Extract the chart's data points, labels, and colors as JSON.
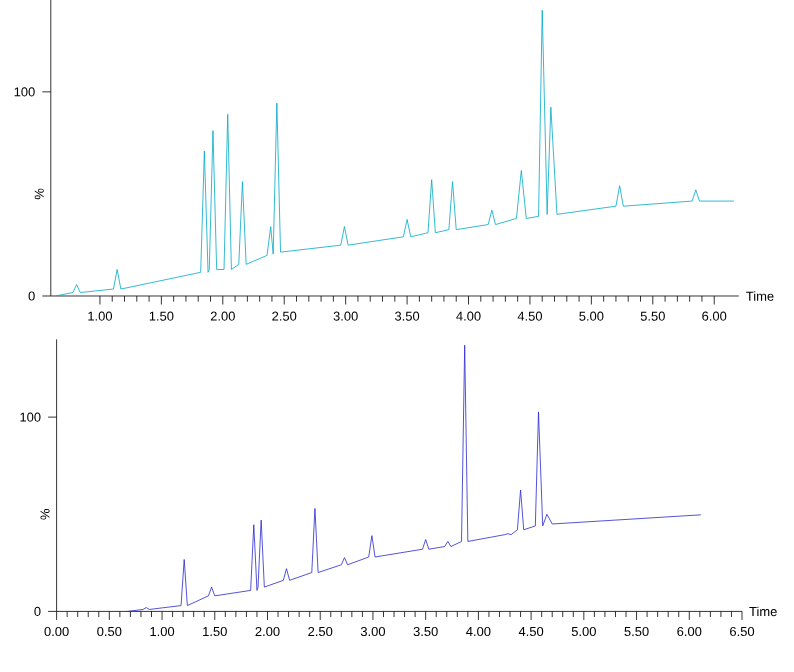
{
  "chart_data": [
    {
      "type": "line",
      "xlabel": "Time",
      "ylabel": "%",
      "xlim": [
        0.6,
        6.2
      ],
      "ylim": [
        0,
        145
      ],
      "xticks": [
        {
          "value": 1,
          "label": "1.00"
        },
        {
          "value": 1.5,
          "label": "1.50"
        },
        {
          "value": 2,
          "label": "2.00"
        },
        {
          "value": 2.5,
          "label": "2.50"
        },
        {
          "value": 3,
          "label": "3.00"
        },
        {
          "value": 3.5,
          "label": "3.50"
        },
        {
          "value": 4,
          "label": "4.00"
        },
        {
          "value": 4.5,
          "label": "4.50"
        },
        {
          "value": 5,
          "label": "5.00"
        },
        {
          "value": 5.5,
          "label": "5.50"
        },
        {
          "value": 6,
          "label": "6.00"
        }
      ],
      "yticks": [
        0,
        100
      ],
      "series": [
        {
          "color": "#00a8c8",
          "x": [
            0.64,
            0.78,
            0.81,
            0.84,
            1.11,
            1.14,
            1.17,
            1.82,
            1.85,
            1.88,
            1.89,
            1.92,
            1.95,
            2.01,
            2.04,
            2.07,
            2.13,
            2.16,
            2.19,
            2.36,
            2.39,
            2.41,
            2.44,
            2.47,
            2.96,
            2.99,
            3.02,
            3.47,
            3.5,
            3.53,
            3.67,
            3.7,
            3.73,
            3.84,
            3.87,
            3.9,
            4.16,
            4.19,
            4.22,
            4.39,
            4.43,
            4.47,
            4.57,
            4.6,
            4.64,
            4.67,
            4.72,
            5.2,
            5.23,
            5.26,
            5.82,
            5.85,
            5.88,
            6.16
          ],
          "values": [
            0,
            1.7,
            5.6,
            1.7,
            3.4,
            13,
            3.4,
            11.6,
            71,
            11.6,
            13,
            81,
            13,
            13,
            89,
            13,
            15.5,
            56,
            15.5,
            19.9,
            34,
            20.5,
            94.5,
            21.5,
            24.9,
            34,
            24.9,
            29,
            37.5,
            29,
            31,
            57,
            31,
            32.5,
            56,
            32.5,
            35,
            42,
            35,
            38,
            61.5,
            38,
            39,
            140,
            40,
            92.5,
            40,
            44,
            54,
            44,
            46.5,
            52,
            46.5,
            46.5
          ]
        }
      ]
    },
    {
      "type": "line",
      "xlabel": "Time",
      "ylabel": "%",
      "xlim": [
        0,
        6.5
      ],
      "ylim": [
        0,
        140
      ],
      "xticks": [
        {
          "value": 0,
          "label": "0.00"
        },
        {
          "value": 0.5,
          "label": "0.50"
        },
        {
          "value": 1,
          "label": "1.00"
        },
        {
          "value": 1.5,
          "label": "1.50"
        },
        {
          "value": 2,
          "label": "2.00"
        },
        {
          "value": 2.5,
          "label": "2.50"
        },
        {
          "value": 3,
          "label": "3.00"
        },
        {
          "value": 3.5,
          "label": "3.50"
        },
        {
          "value": 4,
          "label": "4.00"
        },
        {
          "value": 4.5,
          "label": "4.50"
        },
        {
          "value": 5,
          "label": "5.00"
        },
        {
          "value": 5.5,
          "label": "5.50"
        },
        {
          "value": 6,
          "label": "6.00"
        },
        {
          "value": 6.5,
          "label": "6.50"
        }
      ],
      "yticks": [
        0,
        100
      ],
      "series": [
        {
          "color": "#2828d0",
          "x": [
            0.67,
            0.82,
            0.85,
            0.88,
            1.18,
            1.21,
            1.24,
            1.44,
            1.47,
            1.5,
            1.84,
            1.87,
            1.9,
            1.91,
            1.94,
            1.97,
            2.15,
            2.18,
            2.21,
            2.42,
            2.45,
            2.48,
            2.7,
            2.73,
            2.76,
            2.96,
            2.99,
            3.02,
            3.47,
            3.5,
            3.53,
            3.68,
            3.71,
            3.74,
            3.84,
            3.87,
            3.9,
            4.25,
            4.28,
            4.31,
            4.37,
            4.4,
            4.43,
            4.54,
            4.57,
            4.61,
            4.65,
            4.7,
            6.11
          ],
          "values": [
            0,
            1,
            2,
            1,
            3,
            26.7,
            3,
            8,
            12.5,
            8,
            10.8,
            44.6,
            10.8,
            12.5,
            47,
            12.5,
            16,
            22,
            16,
            20,
            53,
            20,
            24,
            27.7,
            24,
            28,
            39,
            28,
            32,
            37,
            32,
            33.4,
            36,
            33.4,
            36,
            137,
            36,
            39.5,
            40,
            39.5,
            42,
            62.5,
            42,
            44,
            102.7,
            44,
            50,
            45,
            49.7
          ]
        }
      ]
    }
  ]
}
